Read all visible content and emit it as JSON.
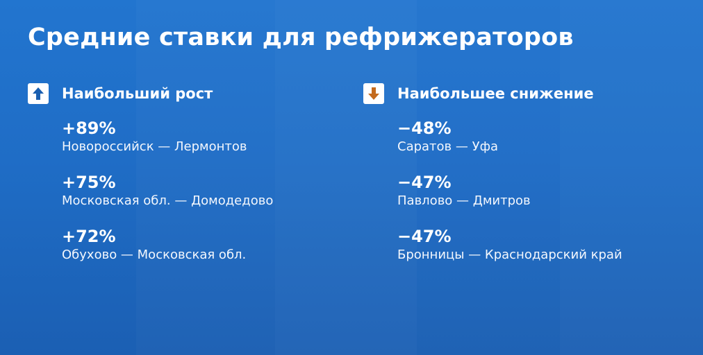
{
  "title": "Средние ставки для рефрижераторов",
  "colors": {
    "background": "#1f6dc6",
    "up_arrow": "#1a5fb0",
    "down_arrow": "#c46a1d"
  },
  "growth": {
    "icon": "up-arrow-icon",
    "label": "Наибольший рост",
    "items": [
      {
        "value": "+89%",
        "route": "Новороссийск — Лермонтов"
      },
      {
        "value": "+75%",
        "route": "Московская обл. — Домодедово"
      },
      {
        "value": "+72%",
        "route": "Обухово — Московская обл."
      }
    ]
  },
  "decline": {
    "icon": "down-arrow-icon",
    "label": "Наибольшее снижение",
    "items": [
      {
        "value": "−48%",
        "route": "Саратов — Уфа"
      },
      {
        "value": "−47%",
        "route": "Павлово — Дмитров"
      },
      {
        "value": "−47%",
        "route": "Бронницы — Краснодарский край"
      }
    ]
  }
}
